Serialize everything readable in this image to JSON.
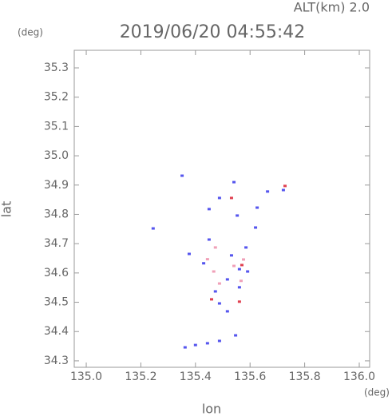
{
  "chart_data": {
    "type": "scatter",
    "title": "2019/06/20 04:55:42",
    "subtitle": "ALT(km) 2.0",
    "x_label": "lon",
    "y_label": "lat",
    "x_unit": "(deg)",
    "y_unit": "(deg)",
    "xlim": [
      134.956,
      136.038
    ],
    "ylim": [
      34.278,
      35.36
    ],
    "xticks": [
      {
        "value": 135,
        "label": "135.0"
      },
      135.2,
      135.4,
      135.6,
      135.8,
      {
        "value": 136,
        "label": "136.0"
      }
    ],
    "yticks": [
      34.3,
      34.4,
      34.5,
      34.6,
      34.7,
      34.8,
      34.9,
      {
        "value": 35,
        "label": "35.0"
      },
      35.1,
      35.2,
      35.3
    ],
    "axis_color": "#999999",
    "series": [
      {
        "color": "#5555ee",
        "x": [
          135.351,
          135.541,
          135.664,
          135.722,
          135.45,
          135.488,
          135.553,
          135.626,
          135.62,
          135.245,
          135.45,
          135.377,
          135.43,
          135.532,
          135.561,
          135.517,
          135.591,
          135.473,
          135.488,
          135.517,
          135.362,
          135.4,
          135.444,
          135.488,
          135.547,
          135.561,
          135.585
        ],
        "y": [
          34.932,
          34.91,
          34.878,
          34.883,
          34.818,
          34.856,
          34.796,
          34.823,
          34.755,
          34.752,
          34.714,
          34.665,
          34.633,
          34.66,
          34.613,
          34.578,
          34.605,
          34.537,
          34.496,
          34.469,
          34.346,
          34.354,
          34.36,
          34.368,
          34.387,
          34.551,
          34.687
        ]
      },
      {
        "color": "#f0a0b8",
        "x": [
          135.444,
          135.467,
          135.488,
          135.541,
          135.576,
          135.473,
          135.567
        ],
        "y": [
          34.647,
          34.605,
          34.564,
          34.624,
          34.646,
          34.687,
          34.573
        ]
      },
      {
        "color": "#e04050",
        "x": [
          135.561,
          135.728,
          135.532,
          135.57,
          135.459
        ],
        "y": [
          34.502,
          34.897,
          34.856,
          34.627,
          34.51
        ]
      }
    ]
  }
}
